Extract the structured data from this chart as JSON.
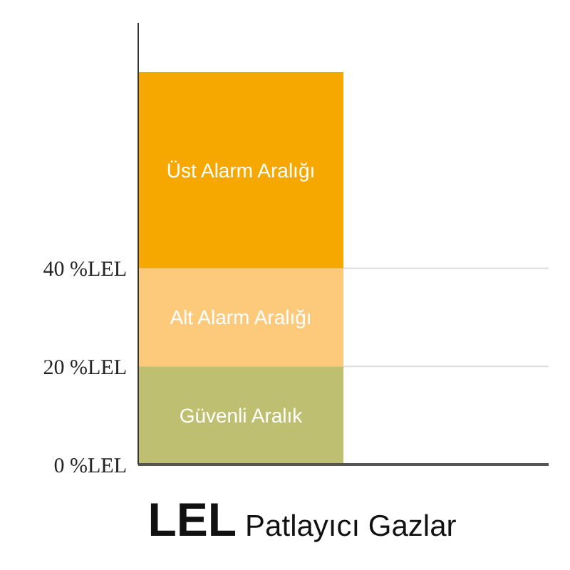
{
  "chart_data": {
    "type": "bar",
    "title": "LEL Patlayıcı Gazlar",
    "categories": [
      null
    ],
    "series": [
      {
        "name": "Güvenli Aralık",
        "color": "#bfbf72",
        "values": [
          20
        ]
      },
      {
        "name": "Alt Alarm Aralığı",
        "color": "#fdc97b",
        "values": [
          20
        ]
      },
      {
        "name": "Üst Alarm Aralığı",
        "color": "#f7a800",
        "values": [
          40
        ]
      }
    ],
    "stacked": true,
    "ylim": [
      0,
      90
    ],
    "yticks": [
      {
        "value": 0,
        "label": "0 %LEL"
      },
      {
        "value": 20,
        "label": "20 %LEL"
      },
      {
        "value": 40,
        "label": "40 %LEL"
      }
    ],
    "grid": "y",
    "tick_labels": "y"
  }
}
